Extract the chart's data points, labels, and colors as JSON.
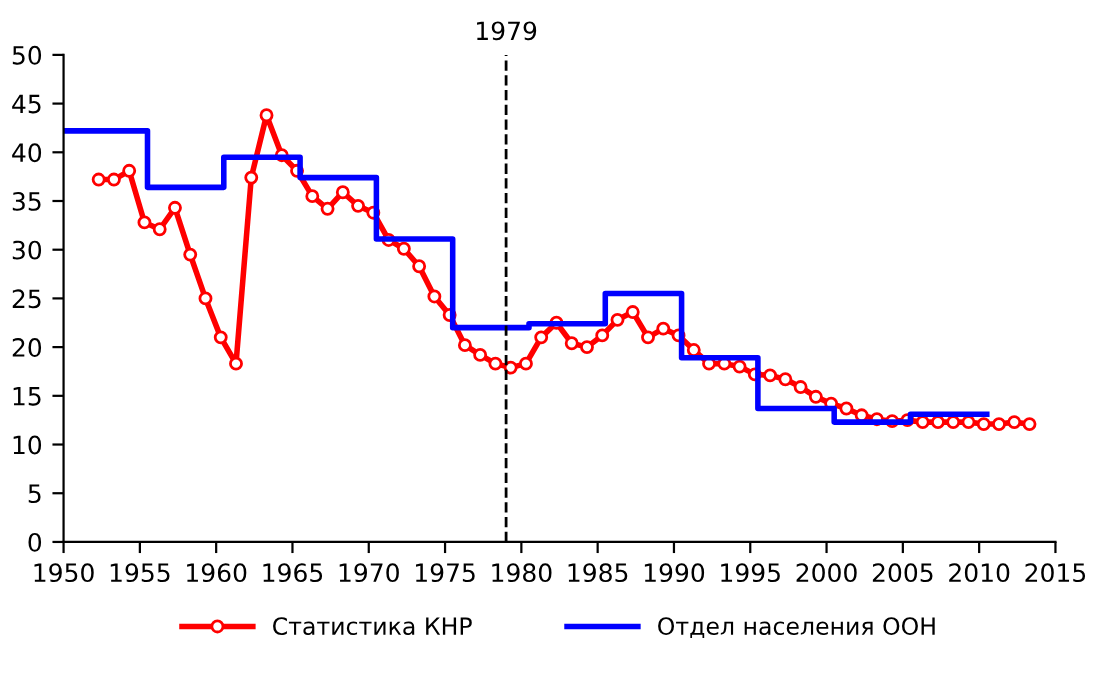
{
  "chart_data": {
    "type": "line",
    "xlim": [
      1950,
      2015
    ],
    "xticks": [
      1950,
      1955,
      1960,
      1965,
      1970,
      1975,
      1980,
      1985,
      1990,
      1995,
      2000,
      2005,
      2010,
      2015
    ],
    "ylim": [
      0,
      50
    ],
    "yticks": [
      0,
      5,
      10,
      15,
      20,
      25,
      30,
      35,
      40,
      45,
      50
    ],
    "grid": false,
    "legend": "bottom",
    "series": [
      {
        "name": "Статистика КНР",
        "color": "#ff0000",
        "marker": "circle",
        "x": [
          1952.3,
          1953.3,
          1954.3,
          1955.3,
          1956.3,
          1957.3,
          1958.3,
          1959.3,
          1960.3,
          1961.3,
          1962.3,
          1963.3,
          1964.3,
          1965.3,
          1966.3,
          1967.3,
          1968.3,
          1969.3,
          1970.3,
          1971.3,
          1972.3,
          1973.3,
          1974.3,
          1975.3,
          1976.3,
          1977.3,
          1978.3,
          1979.3,
          1980.3,
          1981.3,
          1982.3,
          1983.3,
          1984.3,
          1985.3,
          1986.3,
          1987.3,
          1988.3,
          1989.3,
          1990.3,
          1991.3,
          1992.3,
          1993.3,
          1994.3,
          1995.3,
          1996.3,
          1997.3,
          1998.3,
          1999.3,
          2000.3,
          2001.3,
          2002.3,
          2003.3,
          2004.3,
          2005.3,
          2006.3,
          2007.3,
          2008.3,
          2009.3,
          2010.3,
          2011.3,
          2012.3,
          2013.3
        ],
        "values": [
          37.2,
          37.2,
          38.1,
          32.8,
          32.1,
          34.3,
          29.5,
          25.0,
          21.0,
          18.3,
          37.4,
          43.8,
          39.7,
          38.1,
          35.5,
          34.2,
          35.9,
          34.5,
          33.8,
          31.0,
          30.1,
          28.3,
          25.2,
          23.3,
          20.2,
          19.2,
          18.3,
          17.9,
          18.3,
          21.0,
          22.5,
          20.4,
          20.0,
          21.2,
          22.8,
          23.6,
          21.0,
          21.9,
          21.2,
          19.7,
          18.3,
          18.3,
          18.0,
          17.2,
          17.1,
          16.7,
          15.9,
          14.9,
          14.2,
          13.7,
          13.0,
          12.6,
          12.4,
          12.5,
          12.3,
          12.3,
          12.3,
          12.3,
          12.1,
          12.1,
          12.3,
          12.1
        ]
      },
      {
        "name": "Отдел населения ООН",
        "type": "step",
        "color": "#0000ff",
        "marker": "none",
        "x": [
          1950,
          1955.5,
          1960.5,
          1965.5,
          1970.5,
          1975.5,
          1980.5,
          1985.5,
          1990.5,
          1995.5,
          2000.5,
          2005.5,
          2010.5
        ],
        "values": [
          42.2,
          36.4,
          39.5,
          37.4,
          31.1,
          22.0,
          22.4,
          25.5,
          18.9,
          13.7,
          12.3,
          13.1,
          13.1
        ]
      }
    ],
    "ref_lines": [
      {
        "axis": "x",
        "value": 1979,
        "label": "1979",
        "color": "#000000",
        "line_style": "dashed"
      }
    ]
  }
}
